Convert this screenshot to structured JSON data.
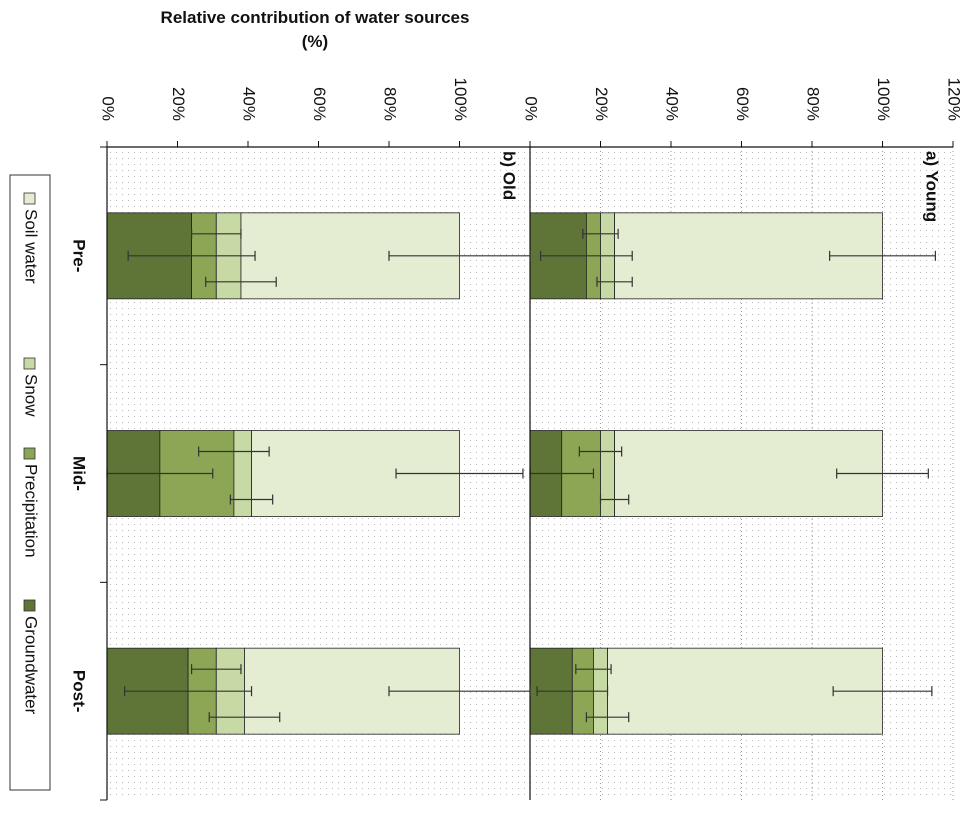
{
  "chart_data": [
    {
      "type": "bar",
      "stacked": true,
      "title": "a) Young",
      "categories": [
        null,
        null,
        null
      ],
      "series": [
        {
          "name": "Groundwater",
          "color": "#5f7537",
          "values": [
            16,
            9,
            12
          ],
          "errors": [
            13,
            9,
            10
          ]
        },
        {
          "name": "Precipitation",
          "color": "#8ca655",
          "values": [
            4,
            11,
            6
          ],
          "errors": [
            5,
            6,
            5
          ]
        },
        {
          "name": "Snow",
          "color": "#c7d9a5",
          "values": [
            4,
            4,
            4
          ],
          "errors": [
            5,
            4,
            6
          ]
        },
        {
          "name": "Soil water",
          "color": "#e4ecd2",
          "values": [
            76,
            76,
            78
          ],
          "errors": [
            15,
            13,
            14
          ]
        }
      ],
      "ylim": [
        0,
        120
      ],
      "yticks": [
        {
          "value": 0,
          "label": "0%"
        },
        {
          "value": 20,
          "label": "20%"
        },
        {
          "value": 40,
          "label": "40%"
        },
        {
          "value": 60,
          "label": "60%"
        },
        {
          "value": 80,
          "label": "80%"
        },
        {
          "value": 100,
          "label": "100%"
        },
        {
          "value": 120,
          "label": "120%"
        }
      ],
      "grid": true,
      "legend": "left"
    },
    {
      "type": "bar",
      "stacked": true,
      "title": "b) Old",
      "y_label": "Relative contribution of water sources (%)",
      "categories": [
        "Pre-",
        "Mid-",
        "Post-"
      ],
      "series": [
        {
          "color": "#5f7537",
          "values": [
            24,
            15,
            23
          ],
          "errors": [
            18,
            15,
            18
          ]
        },
        {
          "color": "#8ca655",
          "values": [
            7,
            21,
            8
          ],
          "errors": [
            7,
            10,
            7
          ]
        },
        {
          "color": "#c7d9a5",
          "values": [
            7,
            5,
            8
          ],
          "errors": [
            10,
            6,
            10
          ]
        },
        {
          "color": "#e4ecd2",
          "values": [
            62,
            59,
            61
          ],
          "errors": [
            20,
            18,
            20
          ]
        }
      ],
      "ylim": [
        0,
        120
      ],
      "yticks": [
        {
          "value": 0,
          "label": "0%"
        },
        {
          "value": 20,
          "label": "20%"
        },
        {
          "value": 40,
          "label": "40%"
        },
        {
          "value": 60,
          "label": "60%"
        },
        {
          "value": 80,
          "label": "80%"
        },
        {
          "value": 100,
          "label": "100%"
        }
      ],
      "grid": false
    }
  ]
}
